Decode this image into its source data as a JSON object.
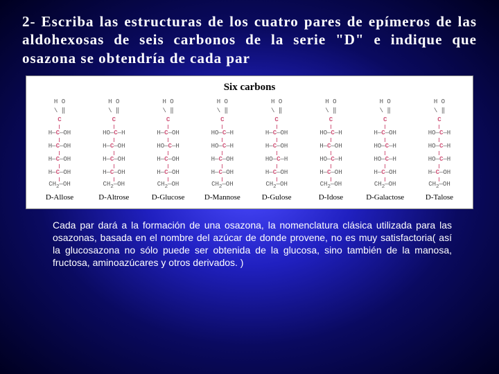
{
  "question_text": "2- Escriba las estructuras de los cuatro pares de epímeros de las aldohexosas de seis carbonos de la serie \"D\" e indique que osazona se obtendría de cada par",
  "diagram_title": "Six carbons",
  "sugars": [
    {
      "name": "D-Allose",
      "c2": "R",
      "c3": "R",
      "c4": "R"
    },
    {
      "name": "D-Altrose",
      "c2": "L",
      "c3": "R",
      "c4": "R"
    },
    {
      "name": "D-Glucose",
      "c2": "R",
      "c3": "L",
      "c4": "R"
    },
    {
      "name": "D-Mannose",
      "c2": "L",
      "c3": "L",
      "c4": "R"
    },
    {
      "name": "D-Gulose",
      "c2": "R",
      "c3": "R",
      "c4": "L"
    },
    {
      "name": "D-Idose",
      "c2": "L",
      "c3": "R",
      "c4": "L"
    },
    {
      "name": "D-Galactose",
      "c2": "R",
      "c3": "L",
      "c4": "L"
    },
    {
      "name": "D-Talose",
      "c2": "L",
      "c3": "L",
      "c4": "L"
    }
  ],
  "answer_text": "Cada par dará a la formación de una osazona, la nomenclatura clásica utilizada para las osazonas, basada en el nombre del azúcar de donde provene, no es muy satisfactoria( así la glucosazona no sólo puede ser obtenida de la glucosa, sino también de la manosa, fructosa, aminoazúcares y otros derivados. )",
  "colors": {
    "carbon": "#d0557a",
    "text_dark": "#333333",
    "panel_bg": "#ffffff",
    "body_text": "#ffffff"
  }
}
